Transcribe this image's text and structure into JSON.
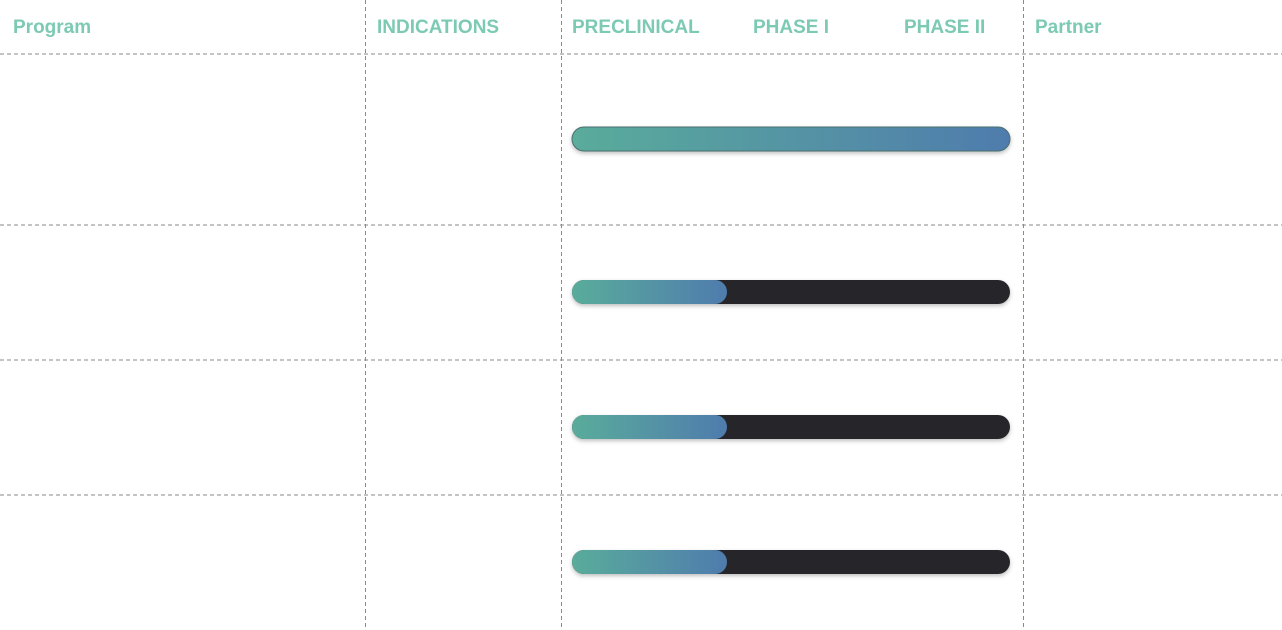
{
  "header": {
    "columns": [
      "Program",
      "INDICATIONS",
      "PRECLINICAL",
      "PHASE I",
      "PHASE II",
      "Partner"
    ]
  }
}
